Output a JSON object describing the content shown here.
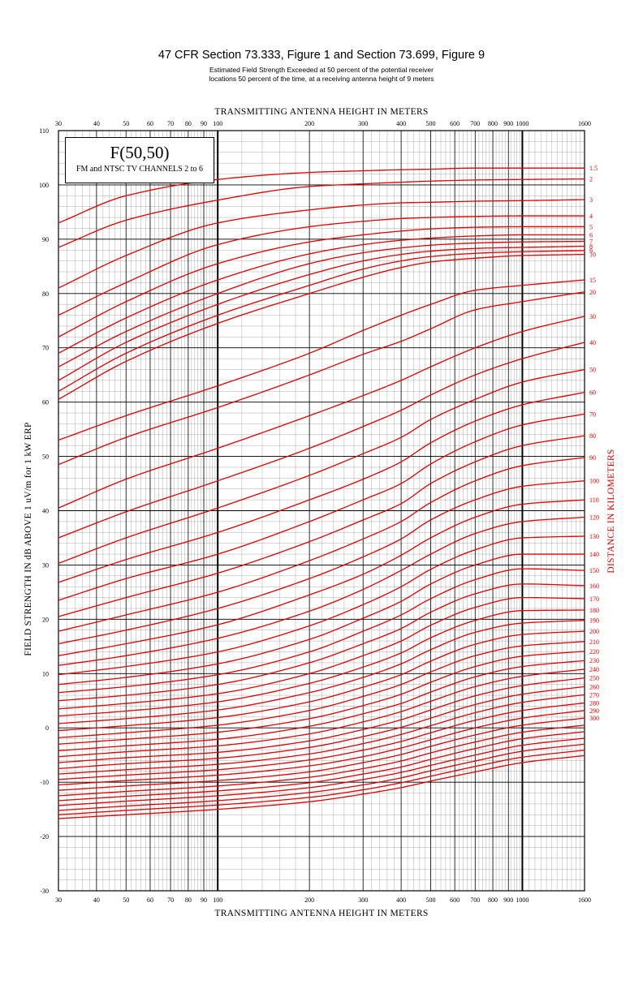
{
  "title": "47 CFR Section 73.333, Figure 1 and Section 73.699, Figure 9",
  "subtitle_line1": "Estimated Field Strength Exceeded at 50 percent of the potential receiver",
  "subtitle_line2": "locations 50 percent of the time, at a receiving antenna height of 9 meters",
  "legend": {
    "title": "F(50,50)",
    "subtitle": "FM and NTSC TV CHANNELS 2 to 6"
  },
  "colors": {
    "curve": "#e00000",
    "grid_major": "#000000",
    "grid_minor": "#888888"
  },
  "chart_data": {
    "type": "line",
    "xlabel": "TRANSMITTING ANTENNA HEIGHT IN METERS",
    "ylabel": "FIELD STRENGTH IN dB ABOVE 1 uV/m for 1 kW ERP",
    "y2label": "DISTANCE IN KILOMETERS",
    "x_scale": "log",
    "xlim": [
      30,
      1600
    ],
    "ylim": [
      -30,
      110
    ],
    "x_ticks": [
      30,
      40,
      50,
      60,
      70,
      80,
      90,
      100,
      200,
      300,
      400,
      500,
      600,
      700,
      800,
      900,
      1000,
      1600
    ],
    "x_tick_labels": [
      "30",
      "40",
      "50",
      "60",
      "70",
      "80",
      "90",
      "100",
      "200",
      "300",
      "400",
      "500",
      "600",
      "700",
      "800",
      "900",
      "1000",
      "1600"
    ],
    "y_ticks": [
      -30,
      -20,
      -10,
      0,
      10,
      20,
      30,
      40,
      50,
      60,
      70,
      80,
      90,
      100,
      110
    ],
    "y_tick_labels": [
      "-30",
      "-20",
      "-10",
      "0",
      "10",
      "20",
      "30",
      "40",
      "50",
      "60",
      "70",
      "80",
      "90",
      "100",
      "110"
    ],
    "x": [
      30,
      50,
      100,
      200,
      300,
      400,
      500,
      700,
      1000,
      1600
    ],
    "series": [
      {
        "name": "1.5",
        "values": [
          93.0,
          98.0,
          101.0,
          102.3,
          102.6,
          102.8,
          102.9,
          103.1,
          103.1,
          103.1
        ]
      },
      {
        "name": "2",
        "values": [
          88.5,
          93.5,
          97.2,
          99.7,
          100.2,
          100.5,
          100.7,
          100.9,
          101.0,
          101.1
        ]
      },
      {
        "name": "3",
        "values": [
          81.0,
          87.0,
          93.0,
          95.4,
          96.3,
          96.7,
          96.8,
          97.0,
          97.1,
          97.3
        ]
      },
      {
        "name": "4",
        "values": [
          76.0,
          82.0,
          89.0,
          92.3,
          93.3,
          93.8,
          94.0,
          94.2,
          94.3,
          94.3
        ]
      },
      {
        "name": "5",
        "values": [
          72.0,
          78.5,
          85.5,
          89.5,
          90.8,
          91.5,
          91.9,
          92.2,
          92.3,
          92.3
        ]
      },
      {
        "name": "6",
        "values": [
          69.0,
          75.5,
          82.5,
          87.3,
          89.0,
          89.8,
          90.2,
          90.6,
          90.8,
          90.8
        ]
      },
      {
        "name": "7",
        "values": [
          66.5,
          73.0,
          80.0,
          85.5,
          87.5,
          88.4,
          88.9,
          89.3,
          89.5,
          89.6
        ]
      },
      {
        "name": "8",
        "values": [
          64.0,
          71.0,
          78.0,
          83.5,
          86.0,
          87.2,
          87.8,
          88.3,
          88.5,
          88.7
        ]
      },
      {
        "name": "9",
        "values": [
          62.0,
          69.0,
          76.0,
          81.5,
          84.5,
          86.0,
          86.8,
          87.4,
          87.7,
          87.9
        ]
      },
      {
        "name": "10",
        "values": [
          60.5,
          67.5,
          74.5,
          80.0,
          83.0,
          84.8,
          85.8,
          86.5,
          87.0,
          87.2
        ]
      },
      {
        "name": "15",
        "values": [
          53.0,
          57.5,
          63.0,
          69.0,
          73.2,
          76.0,
          78.0,
          80.6,
          81.5,
          82.5
        ]
      },
      {
        "name": "20",
        "values": [
          48.5,
          53.5,
          59.0,
          65.0,
          68.8,
          71.2,
          73.5,
          77.0,
          78.5,
          80.3
        ]
      },
      {
        "name": "30",
        "values": [
          40.5,
          45.8,
          51.5,
          57.5,
          61.2,
          64.0,
          66.5,
          70.0,
          73.0,
          75.8
        ]
      },
      {
        "name": "40",
        "values": [
          35.0,
          39.8,
          45.5,
          51.5,
          55.5,
          58.5,
          61.3,
          65.0,
          68.0,
          71.0
        ]
      },
      {
        "name": "50",
        "values": [
          30.3,
          35.0,
          40.5,
          46.5,
          50.5,
          53.5,
          56.8,
          60.5,
          63.7,
          66.0
        ]
      },
      {
        "name": "60",
        "values": [
          26.8,
          31.0,
          36.0,
          42.0,
          45.8,
          49.0,
          52.5,
          56.5,
          59.5,
          61.8
        ]
      },
      {
        "name": "70",
        "values": [
          23.5,
          27.5,
          32.0,
          38.0,
          42.0,
          45.0,
          48.6,
          52.7,
          55.8,
          57.8
        ]
      },
      {
        "name": "80",
        "values": [
          20.5,
          24.0,
          28.5,
          34.3,
          38.3,
          41.3,
          45.0,
          49.0,
          52.0,
          53.8
        ]
      },
      {
        "name": "90",
        "values": [
          17.8,
          20.8,
          25.0,
          30.8,
          34.8,
          38.0,
          41.5,
          45.5,
          48.3,
          49.8
        ]
      },
      {
        "name": "100",
        "values": [
          15.5,
          18.0,
          22.0,
          27.5,
          31.5,
          34.8,
          38.3,
          42.0,
          44.5,
          45.5
        ]
      },
      {
        "name": "110",
        "values": [
          13.3,
          15.5,
          19.0,
          24.5,
          28.3,
          31.8,
          35.0,
          38.8,
          41.2,
          42.0
        ]
      },
      {
        "name": "120",
        "values": [
          11.5,
          13.3,
          16.5,
          21.5,
          25.5,
          29.0,
          32.0,
          35.8,
          38.0,
          38.8
        ]
      },
      {
        "name": "130",
        "values": [
          9.8,
          11.3,
          14.0,
          18.8,
          22.7,
          26.0,
          29.2,
          32.8,
          35.0,
          35.3
        ]
      },
      {
        "name": "140",
        "values": [
          8.0,
          9.3,
          11.8,
          16.3,
          20.2,
          23.3,
          26.5,
          30.0,
          32.0,
          32.0
        ]
      },
      {
        "name": "150",
        "values": [
          6.5,
          7.6,
          9.8,
          14.0,
          17.8,
          20.8,
          23.8,
          27.3,
          29.3,
          29.0
        ]
      },
      {
        "name": "160",
        "values": [
          5.0,
          6.0,
          8.0,
          12.0,
          15.5,
          18.3,
          21.3,
          24.7,
          26.5,
          26.2
        ]
      },
      {
        "name": "170",
        "values": [
          3.5,
          4.5,
          6.3,
          10.0,
          13.3,
          16.0,
          18.9,
          22.2,
          24.0,
          23.8
        ]
      },
      {
        "name": "180",
        "values": [
          2.2,
          3.1,
          4.8,
          8.2,
          11.2,
          13.8,
          16.6,
          19.8,
          21.6,
          21.7
        ]
      },
      {
        "name": "190",
        "values": [
          0.8,
          1.7,
          3.3,
          6.5,
          9.3,
          11.8,
          14.4,
          17.6,
          19.3,
          19.8
        ]
      },
      {
        "name": "200",
        "values": [
          -0.5,
          0.4,
          1.9,
          4.8,
          7.5,
          9.8,
          12.3,
          15.4,
          17.2,
          17.8
        ]
      },
      {
        "name": "210",
        "values": [
          -1.8,
          -0.9,
          0.5,
          3.2,
          5.8,
          8.0,
          10.3,
          13.3,
          15.1,
          15.9
        ]
      },
      {
        "name": "220",
        "values": [
          -3.0,
          -2.1,
          -0.8,
          1.7,
          4.1,
          6.2,
          8.4,
          11.3,
          13.2,
          14.1
        ]
      },
      {
        "name": "230",
        "values": [
          -4.2,
          -3.3,
          -2.1,
          0.3,
          2.6,
          4.5,
          6.6,
          9.4,
          11.3,
          12.4
        ]
      },
      {
        "name": "240",
        "values": [
          -5.3,
          -4.4,
          -3.3,
          -1.1,
          1.1,
          3.0,
          4.9,
          7.6,
          9.5,
          10.8
        ]
      },
      {
        "name": "250",
        "values": [
          -6.4,
          -5.5,
          -4.5,
          -2.4,
          -0.3,
          1.5,
          3.3,
          5.9,
          7.8,
          9.2
        ]
      },
      {
        "name": "260",
        "values": [
          -7.5,
          -6.6,
          -5.6,
          -3.6,
          -1.6,
          0.1,
          1.8,
          4.3,
          6.2,
          7.6
        ]
      },
      {
        "name": "270",
        "values": [
          -8.5,
          -7.7,
          -6.7,
          -4.8,
          -2.9,
          -1.2,
          0.4,
          2.8,
          4.7,
          6.1
        ]
      },
      {
        "name": "280",
        "values": [
          -9.5,
          -8.7,
          -7.7,
          -5.9,
          -4.1,
          -2.5,
          -0.9,
          1.4,
          3.2,
          4.6
        ]
      },
      {
        "name": "290",
        "values": [
          -10.5,
          -9.7,
          -8.7,
          -7.0,
          -5.3,
          -3.7,
          -2.2,
          0.0,
          1.8,
          3.2
        ]
      },
      {
        "name": "300",
        "values": [
          -11.5,
          -10.7,
          -9.7,
          -8.1,
          -6.4,
          -4.9,
          -3.4,
          -1.3,
          0.5,
          1.8
        ]
      },
      {
        "name": "",
        "values": [
          -12.5,
          -11.7,
          -10.7,
          -9.1,
          -7.5,
          -6.1,
          -4.6,
          -2.6,
          -0.8,
          0.5
        ]
      },
      {
        "name": "",
        "values": [
          -13.4,
          -12.6,
          -11.6,
          -10.1,
          -8.5,
          -7.2,
          -5.8,
          -3.8,
          -2.0,
          -0.7
        ]
      },
      {
        "name": "",
        "values": [
          -14.3,
          -13.5,
          -12.5,
          -11.0,
          -9.5,
          -8.2,
          -6.9,
          -5.0,
          -3.2,
          -1.9
        ]
      },
      {
        "name": "",
        "values": [
          -15.2,
          -14.4,
          -13.4,
          -11.9,
          -10.5,
          -9.2,
          -7.9,
          -6.1,
          -4.3,
          -3.0
        ]
      },
      {
        "name": "",
        "values": [
          -16.0,
          -15.2,
          -14.2,
          -12.8,
          -11.4,
          -10.1,
          -8.9,
          -7.1,
          -5.4,
          -4.1
        ]
      },
      {
        "name": "",
        "values": [
          -16.7,
          -16.0,
          -15.0,
          -13.6,
          -12.2,
          -11.0,
          -9.8,
          -8.1,
          -6.4,
          -5.1
        ]
      }
    ]
  }
}
